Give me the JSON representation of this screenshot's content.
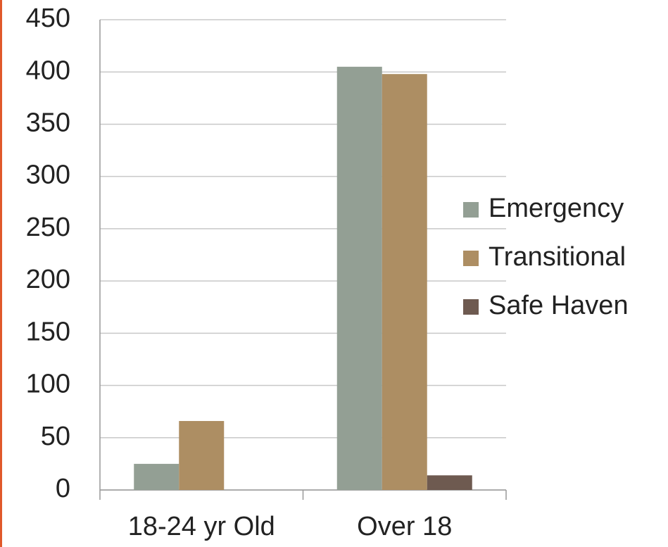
{
  "chart_data": {
    "type": "bar",
    "categories": [
      "18-24 yr Old",
      "Over 18"
    ],
    "series": [
      {
        "name": "Emergency",
        "color": "#939f94",
        "values": [
          25,
          405
        ]
      },
      {
        "name": "Transitional",
        "color": "#ad8e63",
        "values": [
          66,
          398
        ]
      },
      {
        "name": "Safe Haven",
        "color": "#6e5a50",
        "values": [
          0,
          14
        ]
      }
    ],
    "ylim": [
      0,
      450
    ],
    "yticks": [
      0,
      50,
      100,
      150,
      200,
      250,
      300,
      350,
      400,
      450
    ],
    "grid": true,
    "legend": "right"
  }
}
